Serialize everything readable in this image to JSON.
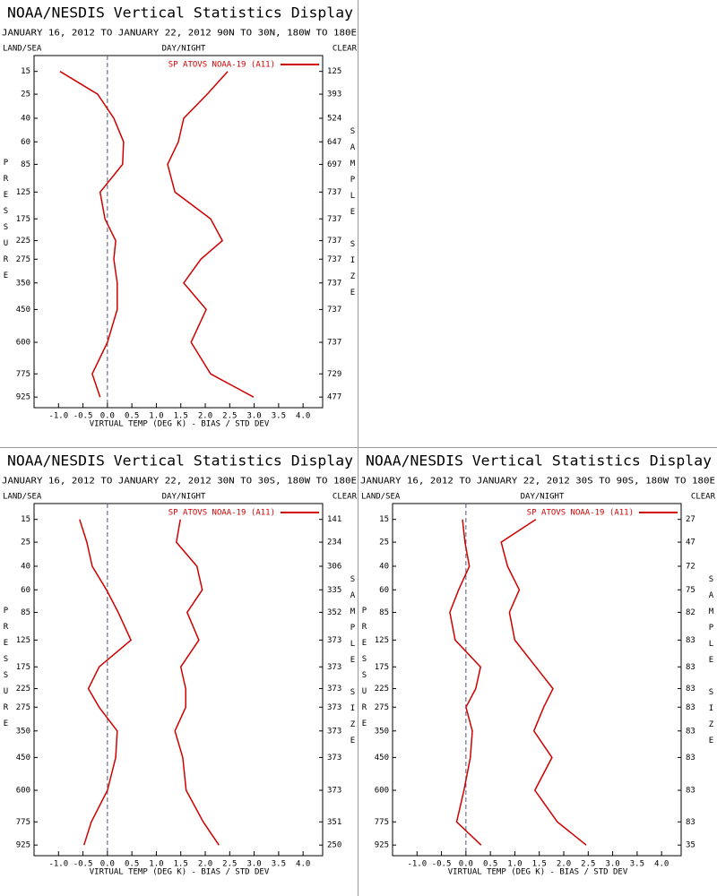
{
  "chart_data": [
    {
      "type": "line",
      "title": "NOAA/NESDIS Vertical Statistics Display",
      "subtitle": "JANUARY 16, 2012 TO JANUARY 22, 2012  90N TO 30N, 180W TO 180E",
      "land_sea_label": "LAND/SEA",
      "day_night_label": "DAY/NIGHT",
      "clear_label": "CLEAR",
      "ylabel": "PRESSURE",
      "y2label": "SAMPLE SIZE",
      "xlabel": "VIRTUAL TEMP (DEG K) - BIAS / STD DEV",
      "levels": [
        15,
        25,
        40,
        60,
        85,
        125,
        175,
        225,
        275,
        350,
        450,
        600,
        775,
        925
      ],
      "sample_sizes": [
        125,
        393,
        524,
        647,
        697,
        737,
        737,
        737,
        737,
        737,
        737,
        737,
        729,
        477
      ],
      "series": [
        {
          "name": "SP ATOVS NOAA-19 (A11)",
          "color": "#d00000",
          "bias": [
            -0.97,
            -0.2,
            0.13,
            0.33,
            0.31,
            -0.15,
            -0.05,
            0.17,
            0.13,
            0.2,
            0.2,
            0.0,
            -0.31,
            -0.15
          ],
          "std_dev": [
            2.46,
            2.04,
            1.56,
            1.45,
            1.23,
            1.38,
            2.11,
            2.35,
            1.91,
            1.56,
            2.02,
            1.71,
            2.11,
            2.99
          ]
        }
      ],
      "xlim": [
        -1.5,
        4.4
      ],
      "ylim": [
        10,
        1000
      ],
      "yscale": {
        "type": "power",
        "exponent": 0.286
      },
      "xticks": [
        {
          "value": -1,
          "label": "-1.0"
        },
        -0.5,
        {
          "value": 0,
          "label": "0.0"
        },
        0.5,
        {
          "value": 1,
          "label": "1.0"
        },
        1.5,
        {
          "value": 2,
          "label": "2.0"
        },
        2.5,
        {
          "value": 3,
          "label": "3.0"
        },
        3.5,
        {
          "value": 4,
          "label": "4.0"
        }
      ],
      "yticks": [
        15,
        25,
        40,
        60,
        85,
        125,
        175,
        225,
        275,
        350,
        450,
        600,
        775,
        925
      ]
    },
    {
      "type": "line",
      "title": "NOAA/NESDIS Vertical Statistics Display",
      "subtitle": "JANUARY 16, 2012 TO JANUARY 22, 2012  30N TO 30S, 180W TO 180E",
      "land_sea_label": "LAND/SEA",
      "day_night_label": "DAY/NIGHT",
      "clear_label": "CLEAR",
      "ylabel": "PRESSURE",
      "y2label": "SAMPLE SIZE",
      "xlabel": "VIRTUAL TEMP (DEG K) - BIAS / STD DEV",
      "levels": [
        15,
        25,
        40,
        60,
        85,
        125,
        175,
        225,
        275,
        350,
        450,
        600,
        775,
        925
      ],
      "sample_sizes": [
        141,
        234,
        306,
        335,
        352,
        373,
        373,
        373,
        373,
        373,
        373,
        373,
        351,
        250
      ],
      "series": [
        {
          "name": "SP ATOVS NOAA-19 (A11)",
          "color": "#d00000",
          "bias": [
            -0.57,
            -0.42,
            -0.31,
            -0.02,
            0.22,
            0.48,
            -0.17,
            -0.39,
            -0.17,
            0.2,
            0.17,
            0.0,
            -0.33,
            -0.48
          ],
          "std_dev": [
            1.49,
            1.41,
            1.83,
            1.94,
            1.63,
            1.87,
            1.5,
            1.6,
            1.6,
            1.38,
            1.54,
            1.61,
            1.96,
            2.28
          ]
        }
      ],
      "xlim": [
        -1.5,
        4.4
      ],
      "ylim": [
        10,
        1000
      ],
      "yscale": {
        "type": "power",
        "exponent": 0.286
      },
      "xticks": [
        {
          "value": -1,
          "label": "-1.0"
        },
        -0.5,
        {
          "value": 0,
          "label": "0.0"
        },
        0.5,
        {
          "value": 1,
          "label": "1.0"
        },
        1.5,
        {
          "value": 2,
          "label": "2.0"
        },
        2.5,
        {
          "value": 3,
          "label": "3.0"
        },
        3.5,
        {
          "value": 4,
          "label": "4.0"
        }
      ],
      "yticks": [
        15,
        25,
        40,
        60,
        85,
        125,
        175,
        225,
        275,
        350,
        450,
        600,
        775,
        925
      ]
    },
    {
      "type": "line",
      "title": "NOAA/NESDIS Vertical Statistics Display",
      "subtitle": "JANUARY 16, 2012 TO JANUARY 22, 2012  30S TO 90S, 180W TO 180E",
      "land_sea_label": "LAND/SEA",
      "day_night_label": "DAY/NIGHT",
      "clear_label": "CLEAR",
      "ylabel": "PRESSURE",
      "y2label": "SAMPLE SIZE",
      "xlabel": "VIRTUAL TEMP (DEG K) - BIAS / STD DEV",
      "levels": [
        15,
        25,
        40,
        60,
        85,
        125,
        175,
        225,
        275,
        350,
        450,
        600,
        775,
        925
      ],
      "sample_sizes": [
        27,
        47,
        72,
        75,
        82,
        83,
        83,
        83,
        83,
        83,
        83,
        83,
        83,
        35
      ],
      "series": [
        {
          "name": "SP ATOVS NOAA-19 (A11)",
          "color": "#d00000",
          "bias": [
            -0.07,
            -0.02,
            0.07,
            -0.15,
            -0.33,
            -0.22,
            0.3,
            0.2,
            0.0,
            0.13,
            0.09,
            -0.04,
            -0.19,
            0.31
          ],
          "std_dev": [
            1.43,
            0.72,
            0.85,
            1.09,
            0.89,
            1.0,
            1.43,
            1.78,
            1.59,
            1.39,
            1.76,
            1.41,
            1.87,
            2.46
          ]
        }
      ],
      "xlim": [
        -1.5,
        4.4
      ],
      "ylim": [
        10,
        1000
      ],
      "yscale": {
        "type": "power",
        "exponent": 0.286
      },
      "xticks": [
        {
          "value": -1,
          "label": "-1.0"
        },
        -0.5,
        {
          "value": 0,
          "label": "0.0"
        },
        0.5,
        {
          "value": 1,
          "label": "1.0"
        },
        1.5,
        {
          "value": 2,
          "label": "2.0"
        },
        2.5,
        {
          "value": 3,
          "label": "3.0"
        },
        3.5,
        {
          "value": 4,
          "label": "4.0"
        }
      ],
      "yticks": [
        15,
        25,
        40,
        60,
        85,
        125,
        175,
        225,
        275,
        350,
        450,
        600,
        775,
        925
      ]
    }
  ]
}
